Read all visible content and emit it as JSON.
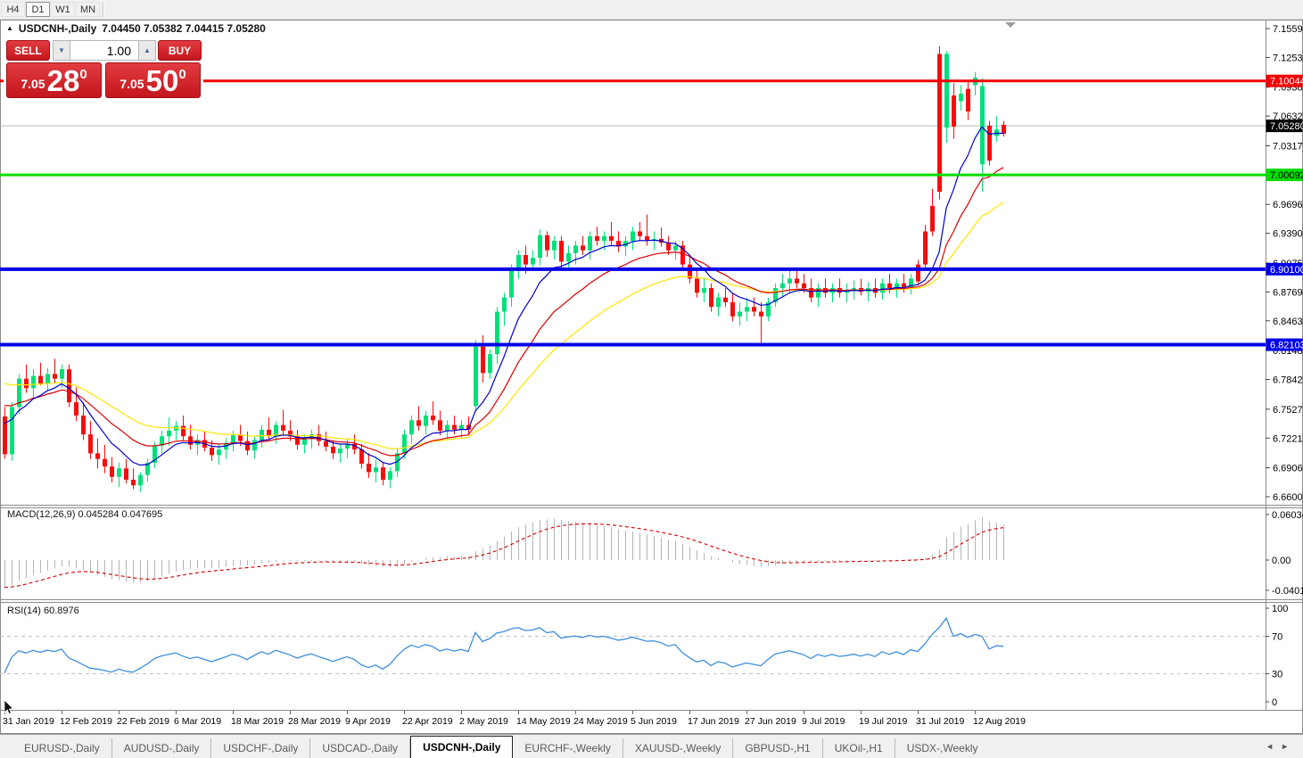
{
  "toolbar": {
    "timeframes": [
      {
        "label": "H4",
        "active": false
      },
      {
        "label": "D1",
        "active": true
      },
      {
        "label": "W1",
        "active": false
      },
      {
        "label": "MN",
        "active": false
      }
    ]
  },
  "chart": {
    "title_arrow": "▲",
    "symbol_title": "USDCNH-,Daily",
    "ohlc_text": "7.04450 7.05382 7.04415 7.05280",
    "trade_panel": {
      "sell_label": "SELL",
      "buy_label": "BUY",
      "volume": "1.00",
      "spinner_down": "▼",
      "spinner_up": "▲",
      "sell_price_small": "7.05",
      "sell_price_big": "28",
      "sell_price_sup": "0",
      "buy_price_small": "7.05",
      "buy_price_big": "50",
      "buy_price_sup": "0",
      "button_color": "#d8242b"
    }
  },
  "macd_pane": {
    "label": "MACD(12,26,9) 0.045284 0.047695",
    "axis_ticks": [
      {
        "value": 0.060343,
        "label": "0.060343"
      },
      {
        "value": 0.0,
        "label": "0.00"
      },
      {
        "value": -0.040136,
        "label": "-0.040136"
      }
    ]
  },
  "rsi_pane": {
    "label": "RSI(14) 60.8976",
    "axis_ticks": [
      {
        "value": 100,
        "label": "100"
      },
      {
        "value": 70,
        "label": "70"
      },
      {
        "value": 30,
        "label": "30"
      },
      {
        "value": 0,
        "label": "0"
      }
    ],
    "dashed_levels": [
      70,
      30
    ]
  },
  "price_axis": {
    "ticks": [
      {
        "value": 7.1559,
        "label": "7.15590"
      },
      {
        "value": 7.1253,
        "label": "7.12530"
      },
      {
        "value": 7.0938,
        "label": "7.09380"
      },
      {
        "value": 7.0632,
        "label": "7.06320"
      },
      {
        "value": 7.0317,
        "label": "7.03170"
      },
      {
        "value": 6.9696,
        "label": "6.96960"
      },
      {
        "value": 6.939,
        "label": "6.93900"
      },
      {
        "value": 6.9075,
        "label": "6.90750"
      },
      {
        "value": 6.8769,
        "label": "6.87690"
      },
      {
        "value": 6.8463,
        "label": "6.84630"
      },
      {
        "value": 6.8148,
        "label": "6.81480"
      },
      {
        "value": 6.7842,
        "label": "6.78420"
      },
      {
        "value": 6.7527,
        "label": "6.75270"
      },
      {
        "value": 6.7221,
        "label": "6.72210"
      },
      {
        "value": 6.6906,
        "label": "6.69060"
      },
      {
        "value": 6.66,
        "label": "6.66000"
      }
    ],
    "current_price_badge": {
      "value": 7.0528,
      "label": "7.05280",
      "bg": "#000000",
      "fg": "#ffffff"
    }
  },
  "tab_bar": {
    "tabs": [
      {
        "label": "EURUSD-,Daily",
        "active": false
      },
      {
        "label": "AUDUSD-,Daily",
        "active": false
      },
      {
        "label": "USDCHF-,Daily",
        "active": false
      },
      {
        "label": "USDCAD-,Daily",
        "active": false
      },
      {
        "label": "USDCNH-,Daily",
        "active": true
      },
      {
        "label": "EURCHF-,Weekly",
        "active": false
      },
      {
        "label": "XAUUSD-,Weekly",
        "active": false
      },
      {
        "label": "GBPUSD-,H1",
        "active": false
      },
      {
        "label": "UKOil-,H1",
        "active": false
      },
      {
        "label": "USDX-,Weekly",
        "active": false
      }
    ],
    "scroll_left": "◄",
    "scroll_right": "►"
  },
  "chart_data": {
    "type": "candlestick",
    "symbol": "USDCNH",
    "timeframe": "Daily",
    "title": "USDCNH-,Daily",
    "price_range": {
      "top": 7.1559,
      "bottom": 6.66
    },
    "x_labels": [
      "31 Jan 2019",
      "12 Feb 2019",
      "22 Feb 2019",
      "6 Mar 2019",
      "18 Mar 2019",
      "28 Mar 2019",
      "9 Apr 2019",
      "22 Apr 2019",
      "2 May 2019",
      "14 May 2019",
      "24 May 2019",
      "5 Jun 2019",
      "17 Jun 2019",
      "27 Jun 2019",
      "9 Jul 2019",
      "19 Jul 2019",
      "31 Jul 2019",
      "12 Aug 2019"
    ],
    "x_label_every": 8,
    "colors": {
      "bull": "#00e07a",
      "bear": "#f70d0d",
      "ma_fast": "#0000cc",
      "ma_medium": "#dd0000",
      "ma_slow": "#ffe400",
      "macd_hist": "#b4b4b4",
      "macd_signal": "#d40000",
      "rsi_line": "#3e8ede",
      "current_line": "#b8b8b8"
    },
    "moving_averages": [
      {
        "name": "fast",
        "period": 8,
        "color": "#0000cc",
        "seed": 6.747
      },
      {
        "name": "medium",
        "period": 17,
        "color": "#dd0000",
        "seed": 6.763
      },
      {
        "name": "slow",
        "period": 30,
        "color": "#ffe400",
        "seed": 6.785
      }
    ],
    "levels": [
      {
        "price": 7.10044,
        "label": "7.10044",
        "color": "#f40000",
        "badge_fg": "#ffffff",
        "width": 3
      },
      {
        "price": 7.00092,
        "label": "7.00092",
        "color": "#00dd00",
        "badge_fg": "#000000",
        "width": 3
      },
      {
        "price": 6.901,
        "label": "6.90100",
        "color": "#0000e8",
        "badge_fg": "#ffffff",
        "width": 4
      },
      {
        "price": 6.82103,
        "label": "6.82103",
        "color": "#0000e8",
        "badge_fg": "#ffffff",
        "width": 4
      }
    ],
    "current_price": 7.0528,
    "indicators": {
      "macd": {
        "fast": 12,
        "slow": 26,
        "signal": 9,
        "value": 0.045284,
        "signal_value": 0.047695,
        "seed_fast": 6.755,
        "seed_slow": 6.79
      },
      "rsi": {
        "period": 14,
        "value": 60.8976,
        "seed_gain": 0.004,
        "seed_loss": 0.009
      }
    },
    "candles": [
      [
        6.745,
        6.755,
        6.7,
        6.705
      ],
      [
        6.705,
        6.76,
        6.698,
        6.755
      ],
      [
        6.755,
        6.79,
        6.748,
        6.785
      ],
      [
        6.785,
        6.8,
        6.77,
        6.775
      ],
      [
        6.775,
        6.795,
        6.765,
        6.788
      ],
      [
        6.788,
        6.802,
        6.778,
        6.78
      ],
      [
        6.78,
        6.796,
        6.772,
        6.79
      ],
      [
        6.79,
        6.806,
        6.78,
        6.785
      ],
      [
        6.785,
        6.8,
        6.775,
        6.795
      ],
      [
        6.795,
        6.8,
        6.755,
        6.76
      ],
      [
        6.76,
        6.776,
        6.74,
        6.746
      ],
      [
        6.746,
        6.76,
        6.72,
        6.726
      ],
      [
        6.726,
        6.74,
        6.7,
        6.706
      ],
      [
        6.706,
        6.722,
        6.69,
        6.7
      ],
      [
        6.7,
        6.715,
        6.685,
        6.692
      ],
      [
        6.692,
        6.702,
        6.675,
        6.681
      ],
      [
        6.681,
        6.696,
        6.67,
        6.69
      ],
      [
        6.69,
        6.7,
        6.674,
        6.678
      ],
      [
        6.678,
        6.69,
        6.668,
        6.672
      ],
      [
        6.672,
        6.686,
        6.665,
        6.683
      ],
      [
        6.683,
        6.7,
        6.676,
        6.696
      ],
      [
        6.696,
        6.718,
        6.69,
        6.714
      ],
      [
        6.714,
        6.73,
        6.706,
        6.724
      ],
      [
        6.724,
        6.744,
        6.714,
        6.73
      ],
      [
        6.73,
        6.74,
        6.72,
        6.735
      ],
      [
        6.735,
        6.746,
        6.72,
        6.724
      ],
      [
        6.724,
        6.736,
        6.71,
        6.715
      ],
      [
        6.715,
        6.726,
        6.704,
        6.72
      ],
      [
        6.72,
        6.73,
        6.708,
        6.712
      ],
      [
        6.712,
        6.72,
        6.698,
        6.704
      ],
      [
        6.704,
        6.716,
        6.694,
        6.71
      ],
      [
        6.71,
        6.722,
        6.7,
        6.717
      ],
      [
        6.717,
        6.73,
        6.708,
        6.725
      ],
      [
        6.725,
        6.736,
        6.714,
        6.719
      ],
      [
        6.719,
        6.729,
        6.704,
        6.709
      ],
      [
        6.709,
        6.724,
        6.7,
        6.72
      ],
      [
        6.72,
        6.736,
        6.712,
        6.731
      ],
      [
        6.731,
        6.744,
        6.72,
        6.724
      ],
      [
        6.724,
        6.74,
        6.716,
        6.736
      ],
      [
        6.736,
        6.752,
        6.726,
        6.73
      ],
      [
        6.73,
        6.741,
        6.719,
        6.724
      ],
      [
        6.724,
        6.731,
        6.71,
        6.715
      ],
      [
        6.715,
        6.726,
        6.706,
        6.721
      ],
      [
        6.721,
        6.731,
        6.711,
        6.726
      ],
      [
        6.726,
        6.736,
        6.714,
        6.719
      ],
      [
        6.719,
        6.729,
        6.708,
        6.713
      ],
      [
        6.713,
        6.72,
        6.7,
        6.706
      ],
      [
        6.706,
        6.716,
        6.696,
        6.711
      ],
      [
        6.711,
        6.721,
        6.701,
        6.716
      ],
      [
        6.716,
        6.726,
        6.705,
        6.71
      ],
      [
        6.71,
        6.716,
        6.69,
        6.695
      ],
      [
        6.695,
        6.706,
        6.68,
        6.686
      ],
      [
        6.686,
        6.7,
        6.675,
        6.691
      ],
      [
        6.691,
        6.696,
        6.672,
        6.678
      ],
      [
        6.678,
        6.691,
        6.669,
        6.687
      ],
      [
        6.687,
        6.712,
        6.681,
        6.706
      ],
      [
        6.706,
        6.731,
        6.7,
        6.726
      ],
      [
        6.726,
        6.746,
        6.716,
        6.741
      ],
      [
        6.741,
        6.756,
        6.73,
        6.735
      ],
      [
        6.735,
        6.751,
        6.726,
        6.746
      ],
      [
        6.746,
        6.761,
        6.736,
        6.741
      ],
      [
        6.741,
        6.751,
        6.725,
        6.73
      ],
      [
        6.73,
        6.741,
        6.72,
        6.736
      ],
      [
        6.736,
        6.746,
        6.726,
        6.731
      ],
      [
        6.731,
        6.741,
        6.721,
        6.736
      ],
      [
        6.736,
        6.745,
        6.726,
        6.731
      ],
      [
        6.756,
        6.826,
        6.75,
        6.819
      ],
      [
        6.819,
        6.831,
        6.781,
        6.791
      ],
      [
        6.791,
        6.816,
        6.785,
        6.811
      ],
      [
        6.811,
        6.861,
        6.801,
        6.856
      ],
      [
        6.856,
        6.876,
        6.841,
        6.871
      ],
      [
        6.871,
        6.906,
        6.861,
        6.901
      ],
      [
        6.901,
        6.921,
        6.891,
        6.916
      ],
      [
        6.916,
        6.926,
        6.896,
        6.906
      ],
      [
        6.906,
        6.921,
        6.899,
        6.913
      ],
      [
        6.913,
        6.943,
        6.905,
        6.937
      ],
      [
        6.937,
        6.941,
        6.914,
        6.921
      ],
      [
        6.921,
        6.936,
        6.911,
        6.931
      ],
      [
        6.931,
        6.936,
        6.901,
        6.909
      ],
      [
        6.909,
        6.926,
        6.901,
        6.918
      ],
      [
        6.918,
        6.931,
        6.906,
        6.926
      ],
      [
        6.926,
        6.936,
        6.916,
        6.921
      ],
      [
        6.921,
        6.941,
        6.911,
        6.936
      ],
      [
        6.936,
        6.946,
        6.926,
        6.931
      ],
      [
        6.931,
        6.941,
        6.921,
        6.936
      ],
      [
        6.936,
        6.951,
        6.926,
        6.931
      ],
      [
        6.931,
        6.941,
        6.919,
        6.925
      ],
      [
        6.925,
        6.936,
        6.915,
        6.931
      ],
      [
        6.931,
        6.946,
        6.921,
        6.941
      ],
      [
        6.941,
        6.951,
        6.931,
        6.936
      ],
      [
        6.936,
        6.959,
        6.926,
        6.931
      ],
      [
        6.931,
        6.941,
        6.921,
        6.933
      ],
      [
        6.933,
        6.945,
        6.925,
        6.929
      ],
      [
        6.929,
        6.936,
        6.916,
        6.921
      ],
      [
        6.921,
        6.931,
        6.911,
        6.926
      ],
      [
        6.926,
        6.931,
        6.901,
        6.906
      ],
      [
        6.906,
        6.916,
        6.886,
        6.891
      ],
      [
        6.891,
        6.901,
        6.871,
        6.876
      ],
      [
        6.876,
        6.891,
        6.866,
        6.881
      ],
      [
        6.881,
        6.886,
        6.856,
        6.861
      ],
      [
        6.861,
        6.876,
        6.851,
        6.871
      ],
      [
        6.871,
        6.881,
        6.861,
        6.866
      ],
      [
        6.866,
        6.876,
        6.846,
        6.851
      ],
      [
        6.851,
        6.866,
        6.841,
        6.856
      ],
      [
        6.856,
        6.871,
        6.846,
        6.861
      ],
      [
        6.861,
        6.871,
        6.851,
        6.856
      ],
      [
        6.856,
        6.866,
        6.821,
        6.851
      ],
      [
        6.851,
        6.871,
        6.846,
        6.866
      ],
      [
        6.866,
        6.886,
        6.861,
        6.881
      ],
      [
        6.881,
        6.896,
        6.871,
        6.886
      ],
      [
        6.886,
        6.901,
        6.876,
        6.891
      ],
      [
        6.891,
        6.901,
        6.881,
        6.886
      ],
      [
        6.886,
        6.896,
        6.876,
        6.881
      ],
      [
        6.881,
        6.891,
        6.866,
        6.871
      ],
      [
        6.871,
        6.886,
        6.861,
        6.881
      ],
      [
        6.881,
        6.891,
        6.871,
        6.876
      ],
      [
        6.876,
        6.886,
        6.866,
        6.881
      ],
      [
        6.881,
        6.891,
        6.871,
        6.876
      ],
      [
        6.876,
        6.886,
        6.866,
        6.878
      ],
      [
        6.878,
        6.889,
        6.869,
        6.881
      ],
      [
        6.881,
        6.891,
        6.873,
        6.877
      ],
      [
        6.877,
        6.887,
        6.867,
        6.881
      ],
      [
        6.881,
        6.891,
        6.871,
        6.876
      ],
      [
        6.876,
        6.891,
        6.869,
        6.886
      ],
      [
        6.886,
        6.896,
        6.876,
        6.881
      ],
      [
        6.881,
        6.891,
        6.871,
        6.886
      ],
      [
        6.886,
        6.896,
        6.876,
        6.881
      ],
      [
        6.881,
        6.896,
        6.874,
        6.891
      ],
      [
        6.906,
        6.911,
        6.884,
        6.888
      ],
      [
        6.941,
        6.948,
        6.901,
        6.906
      ],
      [
        6.968,
        6.986,
        6.936,
        6.941
      ],
      [
        7.129,
        7.137,
        6.975,
        6.983
      ],
      [
        7.051,
        7.132,
        7.035,
        7.129
      ],
      [
        7.085,
        7.098,
        7.039,
        7.052
      ],
      [
        7.079,
        7.096,
        7.069,
        7.087
      ],
      [
        7.092,
        7.101,
        7.059,
        7.068
      ],
      [
        7.096,
        7.11,
        7.085,
        7.104
      ],
      [
        7.012,
        7.103,
        6.983,
        7.095
      ],
      [
        7.053,
        7.058,
        7.011,
        7.016
      ],
      [
        7.042,
        7.063,
        7.036,
        7.049
      ],
      [
        7.054,
        7.058,
        7.0415,
        7.0445
      ]
    ]
  }
}
